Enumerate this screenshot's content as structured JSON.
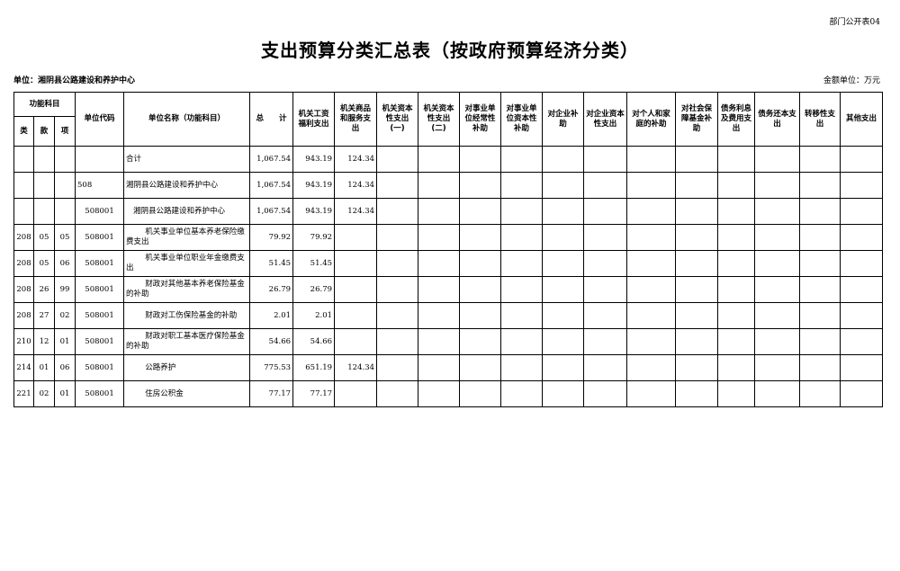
{
  "corner_label": "部门公开表04",
  "title": "支出预算分类汇总表（按政府预算经济分类）",
  "unit_label": "单位：湘阴县公路建设和养护中心",
  "money_unit": "金额单位：万元",
  "header": {
    "group": "功能科目",
    "lei": "类",
    "kuan": "款",
    "xiang": "项",
    "code": "单位代码",
    "name": "单位名称（功能科目）",
    "total": "总　　计",
    "cols": [
      "机关工资福利支出",
      "机关商品和服务支出",
      "机关资本性支出(一)",
      "机关资本性支出(二)",
      "对事业单位经常性补助",
      "对事业单位资本性补助",
      "对企业补助",
      "对企业资本性支出",
      "对个人和家庭的补助",
      "对社会保障基金补助",
      "债务利息及费用支出",
      "债务还本支出",
      "转移性支出",
      "其他支出"
    ]
  },
  "rows": [
    {
      "lei": "",
      "kuan": "",
      "xiang": "",
      "code": "",
      "name": "合计",
      "total": "1,067.54",
      "v1": "943.19",
      "v2": "124.34",
      "style": "top"
    },
    {
      "lei": "",
      "kuan": "",
      "xiang": "",
      "code": "508",
      "name": "湘阴县公路建设和养护中心",
      "total": "1,067.54",
      "v1": "943.19",
      "v2": "124.34",
      "style": "top"
    },
    {
      "lei": "",
      "kuan": "",
      "xiang": "",
      "code": "508001",
      "name": "湘阴县公路建设和养护中心",
      "total": "1,067.54",
      "v1": "943.19",
      "v2": "124.34",
      "style": "unit"
    },
    {
      "lei": "208",
      "kuan": "05",
      "xiang": "05",
      "code": "508001",
      "name": "机关事业单位基本养老保险缴费支出",
      "total": "79.92",
      "v1": "79.92",
      "v2": "",
      "style": "item"
    },
    {
      "lei": "208",
      "kuan": "05",
      "xiang": "06",
      "code": "508001",
      "name": "机关事业单位职业年金缴费支出",
      "total": "51.45",
      "v1": "51.45",
      "v2": "",
      "style": "item"
    },
    {
      "lei": "208",
      "kuan": "26",
      "xiang": "99",
      "code": "508001",
      "name": "财政对其他基本养老保险基金的补助",
      "total": "26.79",
      "v1": "26.79",
      "v2": "",
      "style": "item"
    },
    {
      "lei": "208",
      "kuan": "27",
      "xiang": "02",
      "code": "508001",
      "name": "财政对工伤保险基金的补助",
      "total": "2.01",
      "v1": "2.01",
      "v2": "",
      "style": "item"
    },
    {
      "lei": "210",
      "kuan": "12",
      "xiang": "01",
      "code": "508001",
      "name": "财政对职工基本医疗保险基金的补助",
      "total": "54.66",
      "v1": "54.66",
      "v2": "",
      "style": "item"
    },
    {
      "lei": "214",
      "kuan": "01",
      "xiang": "06",
      "code": "508001",
      "name": "公路养护",
      "total": "775.53",
      "v1": "651.19",
      "v2": "124.34",
      "style": "item"
    },
    {
      "lei": "221",
      "kuan": "02",
      "xiang": "01",
      "code": "508001",
      "name": "住房公积金",
      "total": "77.17",
      "v1": "77.17",
      "v2": "",
      "style": "item"
    }
  ]
}
